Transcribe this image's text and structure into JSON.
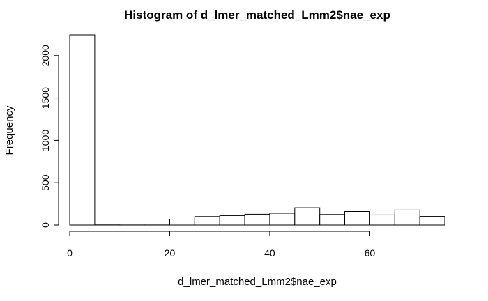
{
  "chart_data": {
    "type": "bar",
    "title": "Histogram of d_lmer_matched_Lmm2$nae_exp",
    "xlabel": "d_lmer_matched_Lmm2$nae_exp",
    "ylabel": "Frequency",
    "bins": [
      {
        "x0": 0,
        "x1": 5,
        "count": 2245
      },
      {
        "x0": 5,
        "x1": 10,
        "count": 2
      },
      {
        "x0": 10,
        "x1": 15,
        "count": 1
      },
      {
        "x0": 15,
        "x1": 20,
        "count": 1
      },
      {
        "x0": 20,
        "x1": 25,
        "count": 70
      },
      {
        "x0": 25,
        "x1": 30,
        "count": 100
      },
      {
        "x0": 30,
        "x1": 35,
        "count": 112
      },
      {
        "x0": 35,
        "x1": 40,
        "count": 128
      },
      {
        "x0": 40,
        "x1": 45,
        "count": 140
      },
      {
        "x0": 45,
        "x1": 50,
        "count": 205
      },
      {
        "x0": 50,
        "x1": 55,
        "count": 125
      },
      {
        "x0": 55,
        "x1": 60,
        "count": 160
      },
      {
        "x0": 60,
        "x1": 65,
        "count": 120
      },
      {
        "x0": 65,
        "x1": 70,
        "count": 178
      },
      {
        "x0": 70,
        "x1": 75,
        "count": 102
      }
    ],
    "xticks": [
      0,
      20,
      40,
      60
    ],
    "yticks": [
      0,
      500,
      1000,
      1500,
      2000
    ],
    "xlim": [
      0,
      75
    ],
    "ylim": [
      0,
      2245
    ],
    "grid": false
  }
}
